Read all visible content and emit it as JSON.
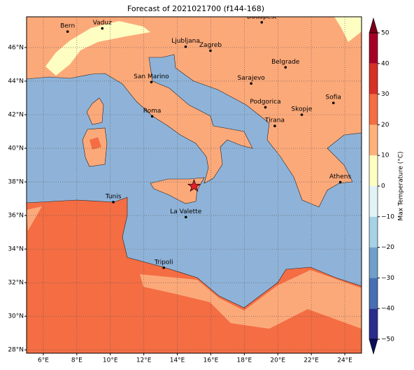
{
  "title": "Forecast of 2021021700 (f144-168)",
  "map": {
    "lon_range": [
      5,
      25
    ],
    "lat_range": [
      27.8,
      47.83
    ],
    "lon_ticks": [
      {
        "value": 6,
        "label": "6°E"
      },
      {
        "value": 8,
        "label": "8°E"
      },
      {
        "value": 10,
        "label": "10°E"
      },
      {
        "value": 12,
        "label": "12°E"
      },
      {
        "value": 14,
        "label": "14°E"
      },
      {
        "value": 16,
        "label": "16°E"
      },
      {
        "value": 18,
        "label": "18°E"
      },
      {
        "value": 20,
        "label": "20°E"
      },
      {
        "value": 22,
        "label": "22°E"
      },
      {
        "value": 24,
        "label": "24°E"
      }
    ],
    "lat_ticks": [
      {
        "value": 28,
        "label": "28°N"
      },
      {
        "value": 30,
        "label": "30°N"
      },
      {
        "value": 32,
        "label": "32°N"
      },
      {
        "value": 34,
        "label": "34°N"
      },
      {
        "value": 36,
        "label": "36°N"
      },
      {
        "value": 38,
        "label": "38°N"
      },
      {
        "value": 40,
        "label": "40°N"
      },
      {
        "value": 42,
        "label": "42°N"
      },
      {
        "value": 44,
        "label": "44°N"
      },
      {
        "value": 46,
        "label": "46°N"
      }
    ],
    "grid": true,
    "cities": [
      {
        "name": "Bern",
        "lon": 7.45,
        "lat": 46.95
      },
      {
        "name": "Vaduz",
        "lon": 9.52,
        "lat": 47.14
      },
      {
        "name": "Budapest",
        "lon": 19.04,
        "lat": 47.5
      },
      {
        "name": "Ljubljana",
        "lon": 14.5,
        "lat": 46.05
      },
      {
        "name": "Zagreb",
        "lon": 15.98,
        "lat": 45.81
      },
      {
        "name": "Belgrade",
        "lon": 20.46,
        "lat": 44.82
      },
      {
        "name": "San Marino",
        "lon": 12.45,
        "lat": 43.94
      },
      {
        "name": "Sarajevo",
        "lon": 18.41,
        "lat": 43.86
      },
      {
        "name": "Sofia",
        "lon": 23.32,
        "lat": 42.7
      },
      {
        "name": "Roma",
        "lon": 12.5,
        "lat": 41.9
      },
      {
        "name": "Podgorica",
        "lon": 19.26,
        "lat": 42.44
      },
      {
        "name": "Skopje",
        "lon": 21.43,
        "lat": 42.0
      },
      {
        "name": "Tirana",
        "lon": 19.82,
        "lat": 41.33
      },
      {
        "name": "Athens",
        "lon": 23.73,
        "lat": 37.98
      },
      {
        "name": "Tunis",
        "lon": 10.18,
        "lat": 36.8
      },
      {
        "name": "La Valette",
        "lon": 14.51,
        "lat": 35.9
      },
      {
        "name": "Tripoli",
        "lon": 13.19,
        "lat": 32.89
      }
    ],
    "marker": {
      "lon": 15.0,
      "lat": 37.75,
      "color": "#e8202a"
    }
  },
  "colorbar": {
    "label": "Max Temperature (°C)",
    "levels": [
      -50,
      -40,
      -30,
      -20,
      -10,
      0,
      10,
      20,
      30,
      40,
      50
    ],
    "colors": [
      "#2b2d8c",
      "#4670b2",
      "#6f9fca",
      "#a6d2e6",
      "#e2f3f8",
      "#fefec2",
      "#fdb27c",
      "#f46d43",
      "#d73027",
      "#a50026"
    ],
    "under_color": "#0c0c5c",
    "over_color": "#7a0019",
    "ticks": [
      50,
      40,
      30,
      20,
      10,
      0,
      {
        "value": -10,
        "label": "−10"
      },
      {
        "value": -20,
        "label": "−20"
      },
      {
        "value": -30,
        "label": "−30"
      },
      {
        "value": -40,
        "label": "−40"
      },
      {
        "value": -50,
        "label": "−50"
      }
    ]
  }
}
